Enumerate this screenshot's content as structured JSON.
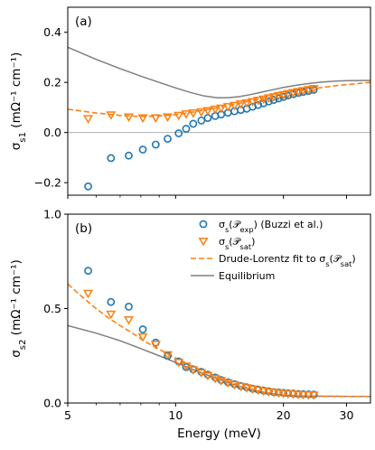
{
  "colors": {
    "exp": "#1f77b4",
    "sat": "#ff7f0e",
    "equilibrium": "#7f7f7f",
    "zero_line": "#b0b0b0"
  },
  "chart_data": [
    {
      "type": "scatter",
      "panel_label": "(a)",
      "ylabel_main": "σ",
      "ylabel_sub": "s1",
      "ylabel_units": " (mΩ⁻¹ cm⁻¹)",
      "xlabel": "",
      "x_scale": "log",
      "xlim": [
        5,
        35
      ],
      "ylim": [
        -0.25,
        0.5
      ],
      "x_ticks": [
        5,
        10,
        20,
        30
      ],
      "y_ticks": [
        {
          "value": -0.2,
          "label": "−0.2"
        },
        {
          "value": 0.0,
          "label": "0.0"
        },
        {
          "value": 0.2,
          "label": "0.2"
        },
        {
          "value": 0.4,
          "label": "0.4"
        }
      ],
      "zero_line": true,
      "series": [
        {
          "key": "exp",
          "marker": "circle",
          "points": [
            [
              5.7,
              -0.215
            ],
            [
              6.6,
              -0.102
            ],
            [
              7.4,
              -0.092
            ],
            [
              8.1,
              -0.068
            ],
            [
              8.8,
              -0.048
            ],
            [
              9.5,
              -0.025
            ],
            [
              10.2,
              -0.003
            ],
            [
              10.7,
              0.015
            ],
            [
              11.2,
              0.035
            ],
            [
              11.8,
              0.048
            ],
            [
              12.3,
              0.058
            ],
            [
              12.9,
              0.066
            ],
            [
              13.4,
              0.072
            ],
            [
              14.0,
              0.079
            ],
            [
              14.6,
              0.085
            ],
            [
              15.2,
              0.09
            ],
            [
              15.8,
              0.095
            ],
            [
              16.4,
              0.103
            ],
            [
              17.0,
              0.11
            ],
            [
              17.6,
              0.117
            ],
            [
              18.2,
              0.124
            ],
            [
              18.8,
              0.13
            ],
            [
              19.4,
              0.136
            ],
            [
              20.0,
              0.142
            ],
            [
              20.6,
              0.148
            ],
            [
              21.3,
              0.153
            ],
            [
              22.0,
              0.158
            ],
            [
              22.7,
              0.162
            ],
            [
              23.5,
              0.166
            ],
            [
              24.3,
              0.17
            ]
          ]
        },
        {
          "key": "sat",
          "marker": "triangle-down",
          "points": [
            [
              5.7,
              0.055
            ],
            [
              6.6,
              0.07
            ],
            [
              7.4,
              0.062
            ],
            [
              8.1,
              0.058
            ],
            [
              8.8,
              0.058
            ],
            [
              9.5,
              0.062
            ],
            [
              10.2,
              0.068
            ],
            [
              10.7,
              0.074
            ],
            [
              11.2,
              0.078
            ],
            [
              11.8,
              0.082
            ],
            [
              12.3,
              0.087
            ],
            [
              12.9,
              0.093
            ],
            [
              13.4,
              0.097
            ],
            [
              14.0,
              0.103
            ],
            [
              14.6,
              0.108
            ],
            [
              15.2,
              0.114
            ],
            [
              15.8,
              0.118
            ],
            [
              16.4,
              0.123
            ],
            [
              17.0,
              0.128
            ],
            [
              17.6,
              0.133
            ],
            [
              18.2,
              0.138
            ],
            [
              18.8,
              0.142
            ],
            [
              19.4,
              0.147
            ],
            [
              20.0,
              0.151
            ],
            [
              20.6,
              0.155
            ],
            [
              21.3,
              0.159
            ],
            [
              22.0,
              0.163
            ],
            [
              22.7,
              0.167
            ],
            [
              23.5,
              0.171
            ],
            [
              24.3,
              0.175
            ]
          ]
        },
        {
          "key": "fit",
          "style": "dashed",
          "points": [
            [
              5,
              0.093
            ],
            [
              6,
              0.078
            ],
            [
              7,
              0.068
            ],
            [
              8,
              0.064
            ],
            [
              9,
              0.066
            ],
            [
              10,
              0.071
            ],
            [
              11,
              0.08
            ],
            [
              12,
              0.089
            ],
            [
              13,
              0.098
            ],
            [
              14,
              0.107
            ],
            [
              15,
              0.116
            ],
            [
              16,
              0.125
            ],
            [
              17,
              0.133
            ],
            [
              18,
              0.14
            ],
            [
              19,
              0.147
            ],
            [
              20,
              0.153
            ],
            [
              22,
              0.165
            ],
            [
              24,
              0.174
            ],
            [
              26,
              0.181
            ],
            [
              28,
              0.187
            ],
            [
              30,
              0.191
            ],
            [
              32,
              0.195
            ],
            [
              35,
              0.2
            ]
          ]
        },
        {
          "key": "equilibrium",
          "style": "solid",
          "points": [
            [
              5,
              0.34
            ],
            [
              6,
              0.292
            ],
            [
              7,
              0.255
            ],
            [
              8,
              0.225
            ],
            [
              9,
              0.2
            ],
            [
              10,
              0.178
            ],
            [
              11,
              0.16
            ],
            [
              12,
              0.146
            ],
            [
              13,
              0.139
            ],
            [
              14,
              0.139
            ],
            [
              15,
              0.143
            ],
            [
              16,
              0.15
            ],
            [
              17,
              0.158
            ],
            [
              18,
              0.166
            ],
            [
              19,
              0.173
            ],
            [
              20,
              0.18
            ],
            [
              22,
              0.19
            ],
            [
              24,
              0.197
            ],
            [
              26,
              0.202
            ],
            [
              28,
              0.205
            ],
            [
              30,
              0.207
            ],
            [
              35,
              0.208
            ]
          ]
        }
      ]
    },
    {
      "type": "scatter",
      "panel_label": "(b)",
      "ylabel_main": "σ",
      "ylabel_sub": "s2",
      "ylabel_units": " (mΩ⁻¹ cm⁻¹)",
      "xlabel": "Energy (meV)",
      "x_scale": "log",
      "xlim": [
        5,
        35
      ],
      "ylim": [
        0,
        1.0
      ],
      "x_ticks": [
        5,
        10,
        20,
        30
      ],
      "y_ticks": [
        {
          "value": 0.0,
          "label": "0.0"
        },
        {
          "value": 0.5,
          "label": "0.5"
        },
        {
          "value": 1.0,
          "label": "1.0"
        }
      ],
      "legend_position": "top-right",
      "series": [
        {
          "key": "exp",
          "marker": "circle",
          "points": [
            [
              5.7,
              0.7
            ],
            [
              6.6,
              0.535
            ],
            [
              7.4,
              0.51
            ],
            [
              8.1,
              0.39
            ],
            [
              8.8,
              0.32
            ],
            [
              9.5,
              0.25
            ],
            [
              10.2,
              0.22
            ],
            [
              10.7,
              0.19
            ],
            [
              11.2,
              0.178
            ],
            [
              11.8,
              0.165
            ],
            [
              12.3,
              0.15
            ],
            [
              12.9,
              0.135
            ],
            [
              13.4,
              0.122
            ],
            [
              14.0,
              0.11
            ],
            [
              14.6,
              0.1
            ],
            [
              15.2,
              0.09
            ],
            [
              15.8,
              0.083
            ],
            [
              16.4,
              0.076
            ],
            [
              17.0,
              0.071
            ],
            [
              17.6,
              0.066
            ],
            [
              18.2,
              0.062
            ],
            [
              18.8,
              0.058
            ],
            [
              19.4,
              0.056
            ],
            [
              20.0,
              0.054
            ],
            [
              20.6,
              0.052
            ],
            [
              21.3,
              0.05
            ],
            [
              22.0,
              0.048
            ],
            [
              22.7,
              0.047
            ],
            [
              23.5,
              0.046
            ],
            [
              24.3,
              0.045
            ]
          ]
        },
        {
          "key": "sat",
          "marker": "triangle-down",
          "points": [
            [
              5.7,
              0.58
            ],
            [
              6.6,
              0.47
            ],
            [
              7.4,
              0.44
            ],
            [
              8.1,
              0.35
            ],
            [
              8.8,
              0.31
            ],
            [
              9.5,
              0.255
            ],
            [
              10.2,
              0.215
            ],
            [
              10.7,
              0.195
            ],
            [
              11.2,
              0.175
            ],
            [
              11.8,
              0.16
            ],
            [
              12.3,
              0.145
            ],
            [
              12.9,
              0.13
            ],
            [
              13.4,
              0.118
            ],
            [
              14.0,
              0.107
            ],
            [
              14.6,
              0.097
            ],
            [
              15.2,
              0.088
            ],
            [
              15.8,
              0.08
            ],
            [
              16.4,
              0.074
            ],
            [
              17.0,
              0.068
            ],
            [
              17.6,
              0.063
            ],
            [
              18.2,
              0.059
            ],
            [
              18.8,
              0.056
            ],
            [
              19.4,
              0.053
            ],
            [
              20.0,
              0.051
            ],
            [
              20.6,
              0.049
            ],
            [
              21.3,
              0.047
            ],
            [
              22.0,
              0.045
            ],
            [
              22.7,
              0.044
            ],
            [
              23.5,
              0.043
            ],
            [
              24.3,
              0.042
            ]
          ]
        },
        {
          "key": "fit",
          "style": "dashed",
          "points": [
            [
              5,
              0.63
            ],
            [
              5.5,
              0.56
            ],
            [
              6,
              0.5
            ],
            [
              6.5,
              0.45
            ],
            [
              7,
              0.41
            ],
            [
              7.5,
              0.375
            ],
            [
              8,
              0.34
            ],
            [
              8.5,
              0.31
            ],
            [
              9,
              0.285
            ],
            [
              9.5,
              0.26
            ],
            [
              10,
              0.238
            ],
            [
              11,
              0.2
            ],
            [
              12,
              0.168
            ],
            [
              13,
              0.14
            ],
            [
              14,
              0.115
            ],
            [
              15,
              0.095
            ],
            [
              16,
              0.078
            ],
            [
              17,
              0.065
            ],
            [
              18,
              0.055
            ],
            [
              19,
              0.048
            ],
            [
              20,
              0.043
            ],
            [
              22,
              0.038
            ],
            [
              24,
              0.036
            ],
            [
              27,
              0.035
            ],
            [
              30,
              0.035
            ],
            [
              35,
              0.035
            ]
          ]
        },
        {
          "key": "equilibrium",
          "style": "solid",
          "points": [
            [
              5,
              0.41
            ],
            [
              6,
              0.37
            ],
            [
              7,
              0.33
            ],
            [
              8,
              0.288
            ],
            [
              9,
              0.25
            ],
            [
              10,
              0.215
            ],
            [
              11,
              0.183
            ],
            [
              12,
              0.155
            ],
            [
              13,
              0.13
            ],
            [
              14,
              0.108
            ],
            [
              15,
              0.09
            ],
            [
              16,
              0.075
            ],
            [
              17,
              0.063
            ],
            [
              18,
              0.054
            ],
            [
              19,
              0.047
            ],
            [
              20,
              0.042
            ],
            [
              22,
              0.038
            ],
            [
              25,
              0.036
            ],
            [
              30,
              0.035
            ],
            [
              35,
              0.035
            ]
          ]
        }
      ]
    }
  ],
  "legend": {
    "entries": [
      {
        "key": "exp",
        "marker": "circle",
        "main": "σ",
        "sub": "s",
        "arg": "(𝒫",
        "arg_sub": "exp",
        "tail": ") (Buzzi et al.)"
      },
      {
        "key": "sat",
        "marker": "triangle-down",
        "main": "σ",
        "sub": "s",
        "arg": "(𝒫",
        "arg_sub": "sat",
        "tail": ")"
      },
      {
        "key": "fit",
        "style": "dashed",
        "prefix": "Drude-Lorentz fit to ",
        "main": "σ",
        "sub": "s",
        "arg": "(𝒫",
        "arg_sub": "sat",
        "tail": ")"
      },
      {
        "key": "equilibrium",
        "style": "solid",
        "label": "Equilibrium"
      }
    ]
  }
}
